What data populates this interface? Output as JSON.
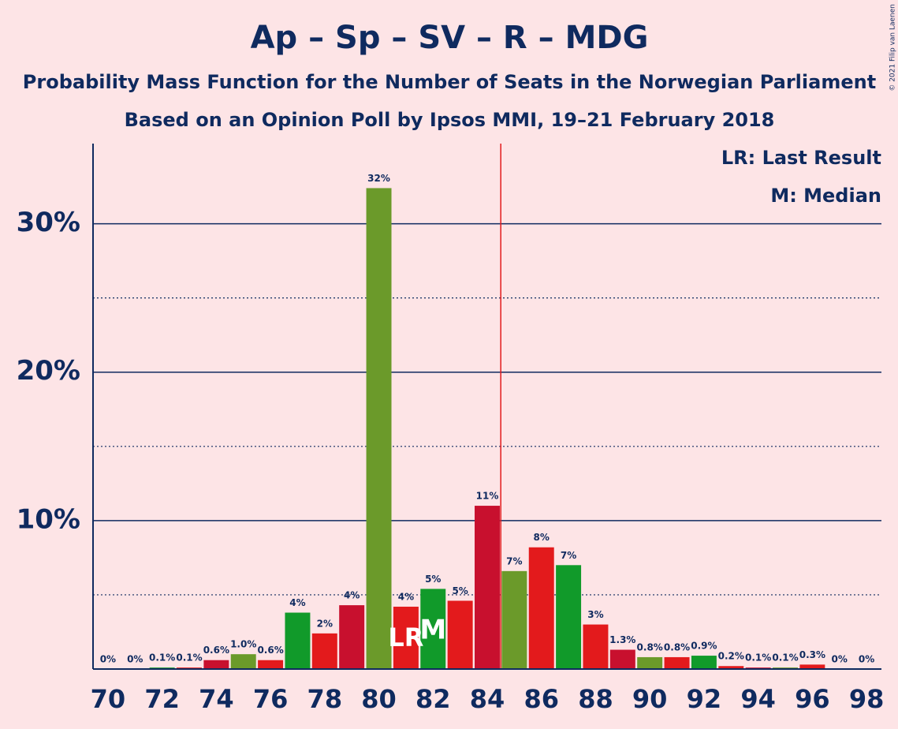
{
  "chart_data": {
    "type": "bar",
    "title": "Ap – Sp – SV – R – MDG",
    "subtitle": [
      "Probability Mass Function for the Number of Seats in the Norwegian Parliament",
      "Based on an Opinion Poll by Ipsos MMI, 19–21 February 2018"
    ],
    "copyright": "© 2021 Filip van Laenen",
    "legend": [
      "LR: Last Result",
      "M: Median"
    ],
    "x": [
      70,
      71,
      72,
      73,
      74,
      75,
      76,
      77,
      78,
      79,
      80,
      81,
      82,
      83,
      84,
      85,
      86,
      87,
      88,
      89,
      90,
      91,
      92,
      93,
      94,
      95,
      96,
      97,
      98
    ],
    "values": [
      0,
      0,
      0.1,
      0.1,
      0.6,
      1.0,
      0.6,
      3.8,
      2.4,
      4.3,
      32.4,
      4.2,
      5.4,
      4.6,
      11.0,
      6.6,
      8.2,
      7.0,
      3.0,
      1.3,
      0.8,
      0.8,
      0.9,
      0.2,
      0.1,
      0.1,
      0.3,
      0,
      0
    ],
    "value_labels": [
      "0%",
      "0%",
      "0.1%",
      "0.1%",
      "0.6%",
      "1.0%",
      "0.6%",
      "4%",
      "2%",
      "4%",
      "32%",
      "4%",
      "5%",
      "5%",
      "11%",
      "7%",
      "8%",
      "7%",
      "3%",
      "1.3%",
      "0.8%",
      "0.8%",
      "0.9%",
      "0.2%",
      "0.1%",
      "0.1%",
      "0.3%",
      "0%",
      "0%"
    ],
    "colors": [
      "#6b9a2a",
      "#e31a1c",
      "#119a2a",
      "#e31a1c",
      "#c8102e",
      "#6b9a2a",
      "#e31a1c",
      "#119a2a",
      "#e31a1c",
      "#c8102e",
      "#6b9a2a",
      "#e31a1c",
      "#119a2a",
      "#e31a1c",
      "#c8102e",
      "#6b9a2a",
      "#e31a1c",
      "#119a2a",
      "#e31a1c",
      "#c8102e",
      "#6b9a2a",
      "#e31a1c",
      "#119a2a",
      "#e31a1c",
      "#c8102e",
      "#6b9a2a",
      "#e31a1c",
      "#119a2a",
      "#e31a1c"
    ],
    "xlim": [
      69.45,
      98.55
    ],
    "xticks": [
      70,
      72,
      74,
      76,
      78,
      80,
      82,
      84,
      86,
      88,
      90,
      92,
      94,
      96,
      98
    ],
    "ylim": [
      0,
      35.4
    ],
    "yticks": [
      {
        "value": 10,
        "label": "10%"
      },
      {
        "value": 20,
        "label": "20%"
      },
      {
        "value": 30,
        "label": "30%"
      }
    ],
    "minor_yticks": [
      5,
      15,
      25
    ],
    "majority_line": 84.5,
    "last_result": {
      "x": 81,
      "label": "LR"
    },
    "median": {
      "x": 82,
      "label": "M"
    },
    "grid": true
  }
}
